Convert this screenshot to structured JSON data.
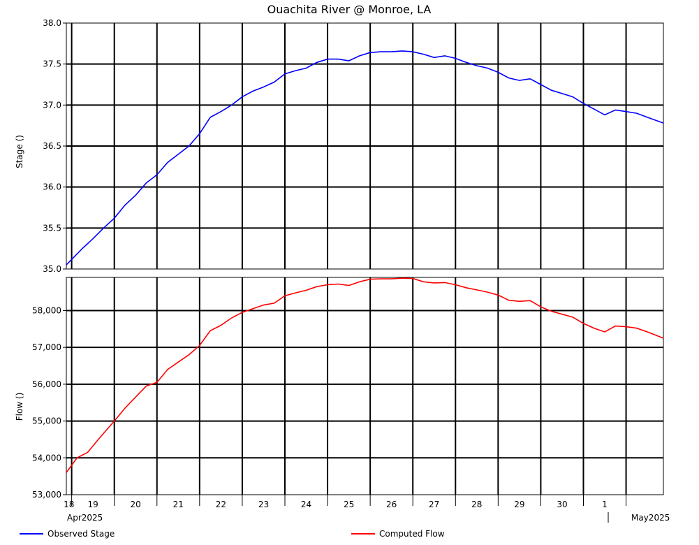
{
  "colors": {
    "stage": "#0000ff",
    "flow": "#ff0000",
    "grid": "#000000",
    "background": "#ffffff"
  },
  "chart_data": {
    "type": "line",
    "title": "Ouachita River @ Monroe, LA",
    "grid": true,
    "legend_placement": "bottom",
    "x_day_labels": [
      "18",
      "19",
      "20",
      "21",
      "22",
      "23",
      "24",
      "25",
      "26",
      "27",
      "28",
      "29",
      "30",
      "1"
    ],
    "x_month_labels": [
      "Apr2025",
      "May2025"
    ],
    "x_range": [
      "2025-04-17T21:00",
      "2025-05-01T21:00"
    ],
    "panels": [
      {
        "ylabel": "Stage ()",
        "ylim": [
          35.0,
          38.0
        ],
        "yticks": [
          "35.0",
          "35.5",
          "36.0",
          "36.5",
          "37.0",
          "37.5",
          "38.0"
        ],
        "series": [
          {
            "name": "Observed Stage",
            "color": "#0000ff",
            "points": [
              [
                "2025-04-17T21:00",
                35.05
              ],
              [
                "2025-04-18T06:00",
                35.25
              ],
              [
                "2025-04-18T12:00",
                35.37
              ],
              [
                "2025-04-18T18:00",
                35.5
              ],
              [
                "2025-04-19T00:00",
                35.62
              ],
              [
                "2025-04-19T06:00",
                35.78
              ],
              [
                "2025-04-19T12:00",
                35.9
              ],
              [
                "2025-04-19T18:00",
                36.05
              ],
              [
                "2025-04-20T00:00",
                36.15
              ],
              [
                "2025-04-20T06:00",
                36.3
              ],
              [
                "2025-04-20T12:00",
                36.4
              ],
              [
                "2025-04-20T18:00",
                36.5
              ],
              [
                "2025-04-21T00:00",
                36.65
              ],
              [
                "2025-04-21T06:00",
                36.85
              ],
              [
                "2025-04-21T12:00",
                36.92
              ],
              [
                "2025-04-21T18:00",
                37.0
              ],
              [
                "2025-04-22T00:00",
                37.1
              ],
              [
                "2025-04-22T06:00",
                37.17
              ],
              [
                "2025-04-22T12:00",
                37.22
              ],
              [
                "2025-04-22T18:00",
                37.28
              ],
              [
                "2025-04-23T00:00",
                37.38
              ],
              [
                "2025-04-23T06:00",
                37.42
              ],
              [
                "2025-04-23T12:00",
                37.45
              ],
              [
                "2025-04-23T18:00",
                37.52
              ],
              [
                "2025-04-24T00:00",
                37.56
              ],
              [
                "2025-04-24T06:00",
                37.56
              ],
              [
                "2025-04-24T12:00",
                37.54
              ],
              [
                "2025-04-24T18:00",
                37.6
              ],
              [
                "2025-04-25T00:00",
                37.64
              ],
              [
                "2025-04-25T06:00",
                37.65
              ],
              [
                "2025-04-25T12:00",
                37.65
              ],
              [
                "2025-04-25T18:00",
                37.66
              ],
              [
                "2025-04-26T00:00",
                37.65
              ],
              [
                "2025-04-26T06:00",
                37.62
              ],
              [
                "2025-04-26T12:00",
                37.58
              ],
              [
                "2025-04-26T18:00",
                37.6
              ],
              [
                "2025-04-27T00:00",
                37.57
              ],
              [
                "2025-04-27T06:00",
                37.52
              ],
              [
                "2025-04-27T12:00",
                37.48
              ],
              [
                "2025-04-27T18:00",
                37.45
              ],
              [
                "2025-04-28T00:00",
                37.4
              ],
              [
                "2025-04-28T06:00",
                37.33
              ],
              [
                "2025-04-28T12:00",
                37.3
              ],
              [
                "2025-04-28T18:00",
                37.32
              ],
              [
                "2025-04-29T00:00",
                37.25
              ],
              [
                "2025-04-29T06:00",
                37.18
              ],
              [
                "2025-04-29T12:00",
                37.14
              ],
              [
                "2025-04-29T18:00",
                37.1
              ],
              [
                "2025-04-30T00:00",
                37.02
              ],
              [
                "2025-04-30T06:00",
                36.95
              ],
              [
                "2025-04-30T12:00",
                36.88
              ],
              [
                "2025-04-30T18:00",
                36.94
              ],
              [
                "2025-05-01T00:00",
                36.92
              ],
              [
                "2025-05-01T06:00",
                36.9
              ],
              [
                "2025-05-01T12:00",
                36.85
              ],
              [
                "2025-05-01T21:00",
                36.78
              ]
            ]
          }
        ]
      },
      {
        "ylabel": "Flow ()",
        "ylim": [
          53000,
          58900
        ],
        "yticks": [
          "53,000",
          "54,000",
          "55,000",
          "56,000",
          "57,000",
          "58,000"
        ],
        "series": [
          {
            "name": "Computed Flow",
            "color": "#ff0000",
            "points": [
              [
                "2025-04-17T21:00",
                53600
              ],
              [
                "2025-04-18T03:00",
                54000
              ],
              [
                "2025-04-18T09:00",
                54150
              ],
              [
                "2025-04-18T15:00",
                54500
              ],
              [
                "2025-04-19T00:00",
                55000
              ],
              [
                "2025-04-19T06:00",
                55350
              ],
              [
                "2025-04-19T12:00",
                55650
              ],
              [
                "2025-04-19T18:00",
                55950
              ],
              [
                "2025-04-20T00:00",
                56050
              ],
              [
                "2025-04-20T06:00",
                56400
              ],
              [
                "2025-04-20T12:00",
                56600
              ],
              [
                "2025-04-20T18:00",
                56800
              ],
              [
                "2025-04-21T00:00",
                57050
              ],
              [
                "2025-04-21T06:00",
                57450
              ],
              [
                "2025-04-21T12:00",
                57600
              ],
              [
                "2025-04-21T18:00",
                57800
              ],
              [
                "2025-04-22T00:00",
                57950
              ],
              [
                "2025-04-22T06:00",
                58050
              ],
              [
                "2025-04-22T12:00",
                58150
              ],
              [
                "2025-04-22T18:00",
                58200
              ],
              [
                "2025-04-23T00:00",
                58400
              ],
              [
                "2025-04-23T06:00",
                58480
              ],
              [
                "2025-04-23T12:00",
                58550
              ],
              [
                "2025-04-23T18:00",
                58650
              ],
              [
                "2025-04-24T00:00",
                58700
              ],
              [
                "2025-04-24T06:00",
                58720
              ],
              [
                "2025-04-24T12:00",
                58680
              ],
              [
                "2025-04-24T18:00",
                58780
              ],
              [
                "2025-04-25T00:00",
                58850
              ],
              [
                "2025-04-25T06:00",
                58860
              ],
              [
                "2025-04-25T12:00",
                58860
              ],
              [
                "2025-04-25T18:00",
                58880
              ],
              [
                "2025-04-26T00:00",
                58870
              ],
              [
                "2025-04-26T06:00",
                58780
              ],
              [
                "2025-04-26T12:00",
                58750
              ],
              [
                "2025-04-26T18:00",
                58760
              ],
              [
                "2025-04-27T00:00",
                58700
              ],
              [
                "2025-04-27T06:00",
                58620
              ],
              [
                "2025-04-27T12:00",
                58560
              ],
              [
                "2025-04-27T18:00",
                58500
              ],
              [
                "2025-04-28T00:00",
                58420
              ],
              [
                "2025-04-28T06:00",
                58280
              ],
              [
                "2025-04-28T12:00",
                58250
              ],
              [
                "2025-04-28T18:00",
                58270
              ],
              [
                "2025-04-29T00:00",
                58100
              ],
              [
                "2025-04-29T06:00",
                57980
              ],
              [
                "2025-04-29T12:00",
                57900
              ],
              [
                "2025-04-29T18:00",
                57820
              ],
              [
                "2025-04-30T00:00",
                57650
              ],
              [
                "2025-04-30T06:00",
                57520
              ],
              [
                "2025-04-30T12:00",
                57420
              ],
              [
                "2025-04-30T18:00",
                57580
              ],
              [
                "2025-05-01T00:00",
                57560
              ],
              [
                "2025-05-01T06:00",
                57520
              ],
              [
                "2025-05-01T12:00",
                57420
              ],
              [
                "2025-05-01T21:00",
                57250
              ]
            ]
          }
        ]
      }
    ]
  }
}
